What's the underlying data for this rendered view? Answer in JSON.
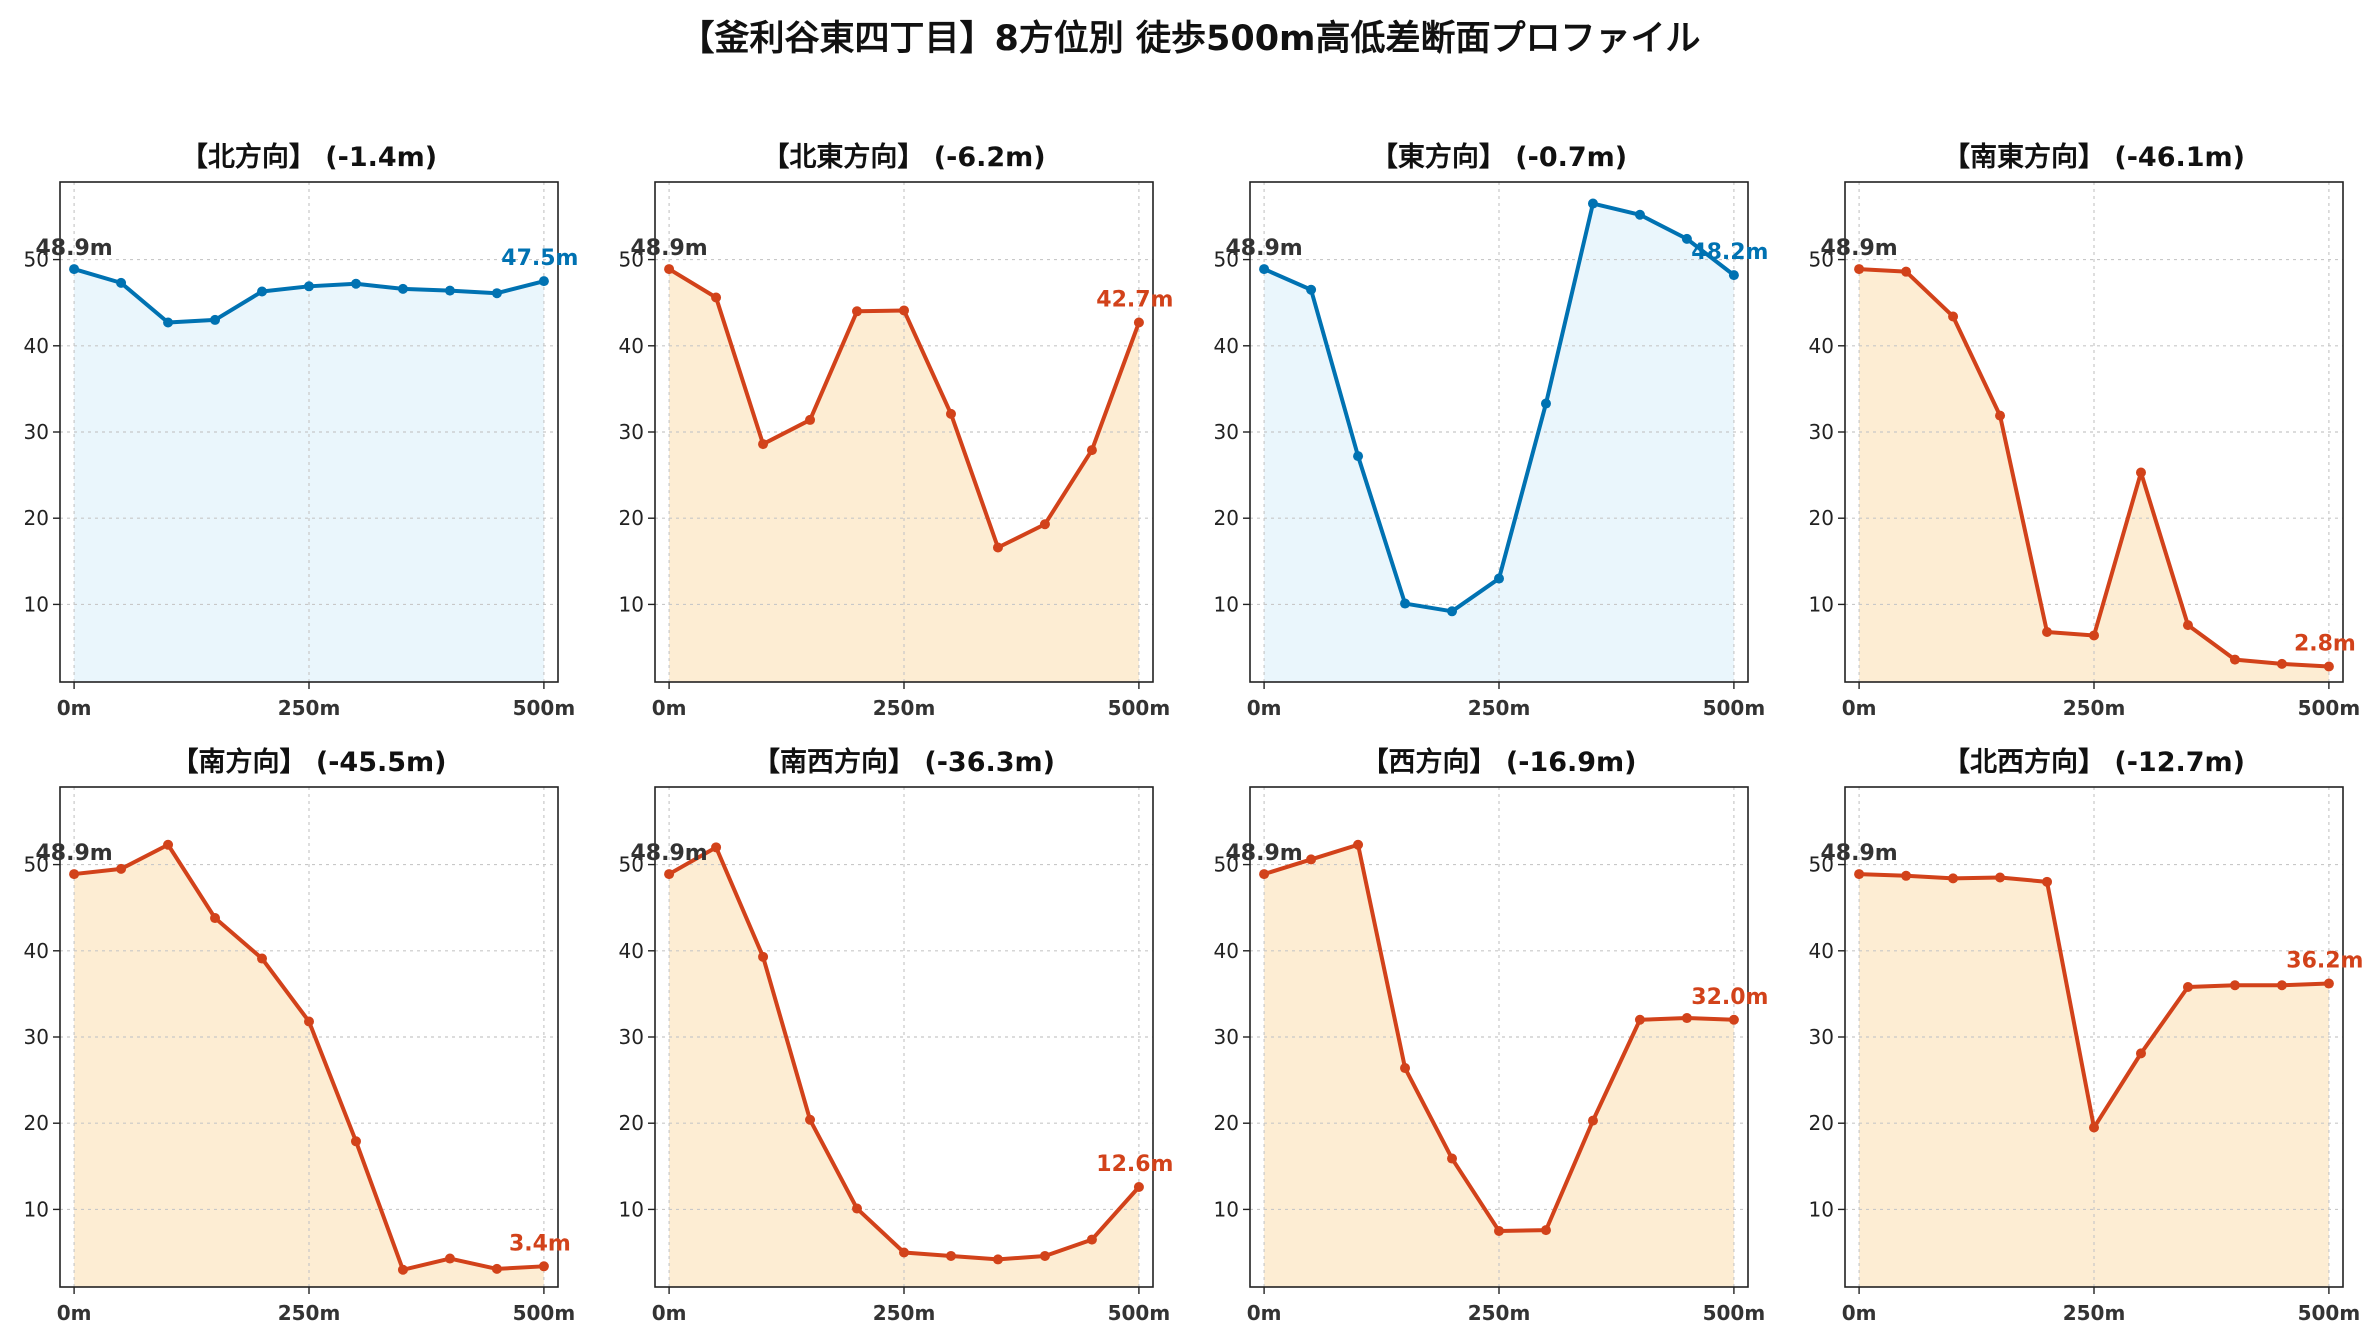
{
  "title": "【釜利谷東四丁目】8方位別 徒歩500m高低差断面プロファイル",
  "colors": {
    "up_line": "#0072B2",
    "up_fill": "#EAF6FC",
    "down_line": "#D2421A",
    "down_fill": "#FDEDD3",
    "start_label": "#333333",
    "grid": "#c8c8c8"
  },
  "chart_data": [
    {
      "type": "area",
      "title": "【北方向】 (-1.4m)",
      "trend": "up",
      "x": [
        0,
        50,
        100,
        150,
        200,
        250,
        300,
        350,
        400,
        450,
        500
      ],
      "values": [
        48.9,
        47.3,
        42.7,
        43.0,
        46.3,
        46.9,
        47.2,
        46.6,
        46.4,
        46.1,
        47.5
      ],
      "start_label": "48.9m",
      "end_label": "47.5m",
      "ylim": [
        1,
        59
      ],
      "yticks": [
        10,
        20,
        30,
        40,
        50
      ],
      "xtick_labels": [
        "0m",
        "250m",
        "500m"
      ],
      "xticks": [
        0,
        250,
        500
      ],
      "grid": true
    },
    {
      "type": "area",
      "title": "【北東方向】 (-6.2m)",
      "trend": "down",
      "x": [
        0,
        50,
        100,
        150,
        200,
        250,
        300,
        350,
        400,
        450,
        500
      ],
      "values": [
        48.9,
        45.6,
        28.6,
        31.4,
        44.0,
        44.1,
        32.1,
        16.6,
        19.3,
        27.9,
        42.7
      ],
      "start_label": "48.9m",
      "end_label": "42.7m",
      "ylim": [
        1,
        59
      ],
      "yticks": [
        10,
        20,
        30,
        40,
        50
      ],
      "xtick_labels": [
        "0m",
        "250m",
        "500m"
      ],
      "xticks": [
        0,
        250,
        500
      ],
      "grid": true
    },
    {
      "type": "area",
      "title": "【東方向】 (-0.7m)",
      "trend": "up",
      "x": [
        0,
        50,
        100,
        150,
        200,
        250,
        300,
        350,
        400,
        450,
        500
      ],
      "values": [
        48.9,
        46.5,
        27.2,
        10.1,
        9.2,
        13.0,
        33.3,
        56.5,
        55.2,
        52.4,
        48.2
      ],
      "start_label": "48.9m",
      "end_label": "48.2m",
      "ylim": [
        1,
        59
      ],
      "yticks": [
        10,
        20,
        30,
        40,
        50
      ],
      "xtick_labels": [
        "0m",
        "250m",
        "500m"
      ],
      "xticks": [
        0,
        250,
        500
      ],
      "grid": true
    },
    {
      "type": "area",
      "title": "【南東方向】 (-46.1m)",
      "trend": "down",
      "x": [
        0,
        50,
        100,
        150,
        200,
        250,
        300,
        350,
        400,
        450,
        500
      ],
      "values": [
        48.9,
        48.6,
        43.4,
        31.9,
        6.8,
        6.4,
        25.3,
        7.6,
        3.6,
        3.1,
        2.8
      ],
      "start_label": "48.9m",
      "end_label": "2.8m",
      "ylim": [
        1,
        59
      ],
      "yticks": [
        10,
        20,
        30,
        40,
        50
      ],
      "xtick_labels": [
        "0m",
        "250m",
        "500m"
      ],
      "xticks": [
        0,
        250,
        500
      ],
      "grid": true
    },
    {
      "type": "area",
      "title": "【南方向】 (-45.5m)",
      "trend": "down",
      "x": [
        0,
        50,
        100,
        150,
        200,
        250,
        300,
        350,
        400,
        450,
        500
      ],
      "values": [
        48.9,
        49.5,
        52.3,
        43.8,
        39.1,
        31.8,
        17.9,
        3.0,
        4.3,
        3.1,
        3.4
      ],
      "start_label": "48.9m",
      "end_label": "3.4m",
      "ylim": [
        1,
        59
      ],
      "yticks": [
        10,
        20,
        30,
        40,
        50
      ],
      "xtick_labels": [
        "0m",
        "250m",
        "500m"
      ],
      "xticks": [
        0,
        250,
        500
      ],
      "grid": true
    },
    {
      "type": "area",
      "title": "【南西方向】 (-36.3m)",
      "trend": "down",
      "x": [
        0,
        50,
        100,
        150,
        200,
        250,
        300,
        350,
        400,
        450,
        500
      ],
      "values": [
        48.9,
        52.0,
        39.3,
        20.4,
        10.1,
        5.0,
        4.6,
        4.2,
        4.6,
        6.5,
        12.6
      ],
      "start_label": "48.9m",
      "end_label": "12.6m",
      "ylim": [
        1,
        59
      ],
      "yticks": [
        10,
        20,
        30,
        40,
        50
      ],
      "xtick_labels": [
        "0m",
        "250m",
        "500m"
      ],
      "xticks": [
        0,
        250,
        500
      ],
      "grid": true
    },
    {
      "type": "area",
      "title": "【西方向】 (-16.9m)",
      "trend": "down",
      "x": [
        0,
        50,
        100,
        150,
        200,
        250,
        300,
        350,
        400,
        450,
        500
      ],
      "values": [
        48.9,
        50.6,
        52.3,
        26.4,
        15.9,
        7.5,
        7.6,
        20.3,
        32.0,
        32.2,
        32.0
      ],
      "start_label": "48.9m",
      "end_label": "32.0m",
      "ylim": [
        1,
        59
      ],
      "yticks": [
        10,
        20,
        30,
        40,
        50
      ],
      "xtick_labels": [
        "0m",
        "250m",
        "500m"
      ],
      "xticks": [
        0,
        250,
        500
      ],
      "grid": true
    },
    {
      "type": "area",
      "title": "【北西方向】 (-12.7m)",
      "trend": "down",
      "x": [
        0,
        50,
        100,
        150,
        200,
        250,
        300,
        350,
        400,
        450,
        500
      ],
      "values": [
        48.9,
        48.7,
        48.4,
        48.5,
        48.0,
        19.5,
        28.1,
        35.8,
        36.0,
        36.0,
        36.2
      ],
      "start_label": "48.9m",
      "end_label": "36.2m",
      "ylim": [
        1,
        59
      ],
      "yticks": [
        10,
        20,
        30,
        40,
        50
      ],
      "xtick_labels": [
        "0m",
        "250m",
        "500m"
      ],
      "xticks": [
        0,
        250,
        500
      ],
      "grid": true
    }
  ]
}
